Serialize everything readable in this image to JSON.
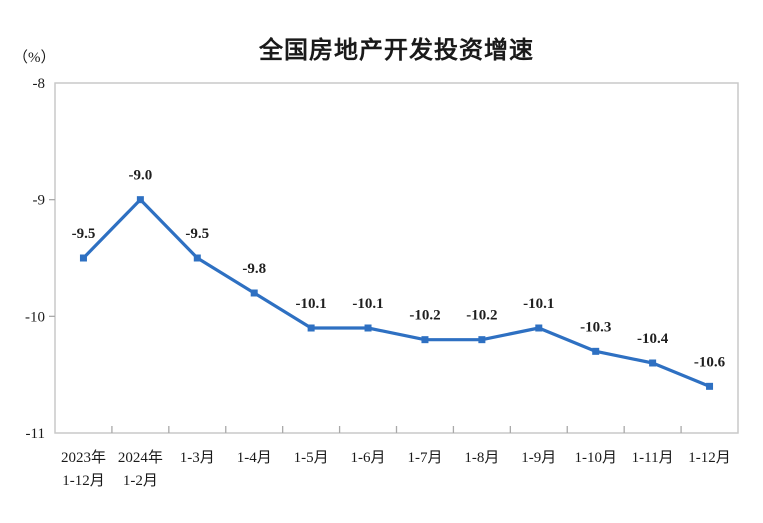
{
  "page": {
    "background": "#FFFFFF"
  },
  "chart_data": {
    "type": "line",
    "title": "全国房地产开发投资增速",
    "unit_label": "（%）",
    "categories": [
      "2023年\n1-12月",
      "2024年\n1-2月",
      "1-3月",
      "1-4月",
      "1-5月",
      "1-6月",
      "1-7月",
      "1-8月",
      "1-9月",
      "1-10月",
      "1-11月",
      "1-12月"
    ],
    "series": [
      {
        "name": "全国房地产开发投资增速",
        "values": [
          -9.5,
          -9.0,
          -9.5,
          -9.8,
          -10.1,
          -10.1,
          -10.2,
          -10.2,
          -10.1,
          -10.3,
          -10.4,
          -10.6
        ]
      }
    ],
    "data_labels": [
      "-9.5",
      "-9.0",
      "-9.5",
      "-9.8",
      "-10.1",
      "-10.1",
      "-10.2",
      "-10.2",
      "-10.1",
      "-10.3",
      "-10.4",
      "-10.6"
    ],
    "ylim": [
      -11,
      -8
    ],
    "yticks": [
      -8,
      -9,
      -10,
      -11
    ],
    "ytick_labels": [
      "-8",
      "-9",
      "-10",
      "-11"
    ],
    "xlabel": "",
    "ylabel": "（%）",
    "grid": false,
    "legend": "none",
    "marker": "square",
    "colors": {
      "line": "#2E70C2",
      "marker": "#2E70C2",
      "label_text": "#1F1F1F",
      "axis_text": "#1A1A1A",
      "frame": "#C9C9C9",
      "tick": "#A9A9A9",
      "title_text": "#1A1A1A"
    }
  }
}
